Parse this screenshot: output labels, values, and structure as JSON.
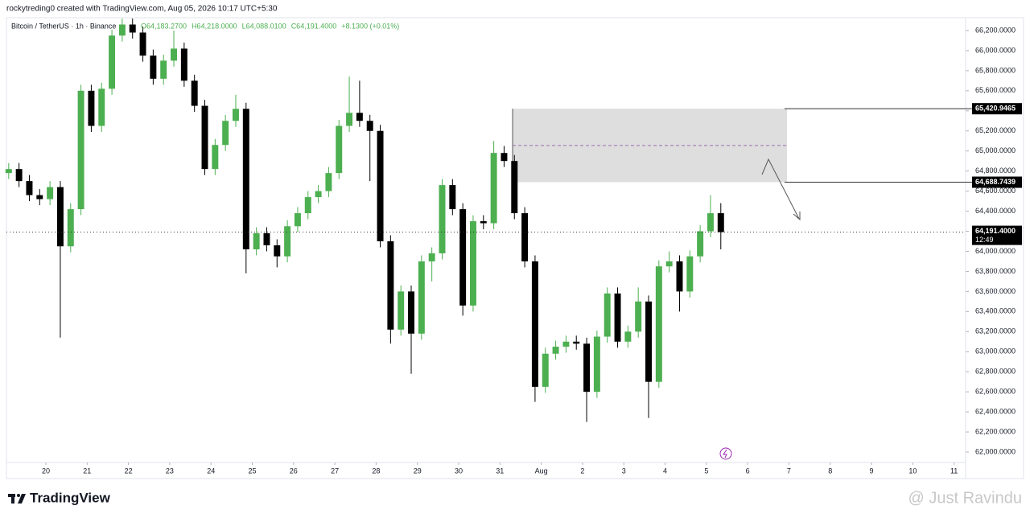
{
  "header": {
    "attribution": "rockytreding0 created with TradingView.com, Aug 05, 2026 10:17 UTC+5:30",
    "symbol": "Bitcoin / TetherUS · 1h · Binance",
    "ohlc_legend": [
      "O64,183.2700",
      "H64,218.0000",
      "L64,088.0100",
      "C64,191.4000",
      "+8.1300 (+0.01%)"
    ]
  },
  "chart_data": {
    "type": "candlestick",
    "up_color": "#4caf50",
    "down_color": "#000000",
    "x": [
      -0.9,
      -0.65,
      -0.4,
      -0.15,
      0.1,
      0.35,
      0.6,
      0.85,
      1.1,
      1.35,
      1.6,
      1.85,
      2.1,
      2.35,
      2.6,
      2.85,
      3.1,
      3.35,
      3.6,
      3.85,
      4.1,
      4.35,
      4.6,
      4.85,
      5.1,
      5.35,
      5.6,
      5.85,
      6.1,
      6.35,
      6.6,
      6.85,
      7.1,
      7.35,
      7.6,
      7.85,
      8.1,
      8.35,
      8.6,
      8.85,
      9.1,
      9.35,
      9.6,
      9.85,
      10.1,
      10.35,
      10.6,
      10.85,
      11.1,
      11.35,
      11.6,
      11.85,
      12.1,
      12.35,
      12.6,
      12.85,
      13.1,
      13.35,
      13.6,
      13.85,
      14.1,
      14.35,
      14.6,
      14.85,
      15.1,
      15.35,
      15.6,
      15.85,
      16.1,
      16.35
    ],
    "open": [
      64780,
      64820,
      64700,
      64560,
      64520,
      64640,
      64050,
      64420,
      65600,
      65250,
      65620,
      66150,
      66260,
      66180,
      65950,
      65720,
      65900,
      66020,
      65700,
      65450,
      64820,
      65060,
      65300,
      65420,
      64020,
      64180,
      64060,
      63950,
      64250,
      64380,
      64540,
      64600,
      64780,
      65250,
      65380,
      65300,
      65200,
      64100,
      63220,
      63600,
      63180,
      63900,
      63980,
      64660,
      64420,
      63460,
      64300,
      64280,
      64980,
      64900,
      64380,
      63900,
      62650,
      62980,
      63050,
      63100,
      63080,
      62600,
      63150,
      63580,
      63100,
      63200,
      63500,
      62700,
      63850,
      63900,
      63600,
      63950,
      64200,
      64380
    ],
    "high": [
      64880,
      64880,
      64760,
      64620,
      64700,
      64700,
      64480,
      65660,
      65660,
      65680,
      66210,
      66320,
      66320,
      66240,
      66010,
      65960,
      66200,
      66080,
      65760,
      65510,
      65120,
      65360,
      65560,
      65480,
      64240,
      64240,
      64120,
      64310,
      64440,
      64600,
      64660,
      64840,
      65310,
      65740,
      65700,
      65360,
      65260,
      64160,
      63660,
      63660,
      63960,
      64040,
      64720,
      64720,
      64480,
      64360,
      64360,
      65100,
      65050,
      64960,
      64440,
      63960,
      63040,
      63110,
      63160,
      63160,
      63140,
      63210,
      63640,
      63640,
      63260,
      63640,
      63560,
      63910,
      64000,
      63960,
      64010,
      64260,
      64560,
      64480
    ],
    "low": [
      64720,
      64640,
      64500,
      64460,
      64460,
      63140,
      63990,
      64360,
      65190,
      65190,
      65560,
      66090,
      66120,
      65890,
      65660,
      65660,
      65840,
      65640,
      65390,
      64760,
      64760,
      65000,
      65240,
      63780,
      63960,
      64000,
      63840,
      63890,
      64190,
      64320,
      64480,
      64540,
      64720,
      65190,
      65240,
      64700,
      64040,
      63080,
      63160,
      62780,
      63120,
      63700,
      63920,
      64360,
      63360,
      63400,
      64220,
      64220,
      64840,
      64320,
      63840,
      62500,
      62590,
      62920,
      62990,
      63020,
      62300,
      62540,
      63090,
      63040,
      63040,
      63140,
      62340,
      62640,
      63790,
      63400,
      63540,
      63890,
      64140,
      64020
    ],
    "close": [
      64820,
      64700,
      64560,
      64520,
      64640,
      64050,
      64420,
      65600,
      65250,
      65620,
      66150,
      66260,
      66180,
      65950,
      65720,
      65900,
      66020,
      65700,
      65450,
      64820,
      65060,
      65300,
      65420,
      64020,
      64180,
      64060,
      63950,
      64250,
      64380,
      64540,
      64600,
      64780,
      65250,
      65380,
      65300,
      65200,
      64100,
      63220,
      63600,
      63180,
      63900,
      63980,
      64660,
      64420,
      63460,
      64300,
      64280,
      64980,
      64900,
      64380,
      63900,
      62650,
      62980,
      63050,
      63100,
      63080,
      62600,
      63150,
      63580,
      63100,
      63200,
      63500,
      62700,
      63850,
      63900,
      63600,
      63950,
      64200,
      64380,
      64191.4
    ],
    "xlim": [
      -0.955,
      22.28
    ],
    "xticks": [
      {
        "value": 0,
        "label": "20"
      },
      {
        "value": 1,
        "label": "21"
      },
      {
        "value": 2,
        "label": "22"
      },
      {
        "value": 3,
        "label": "23"
      },
      {
        "value": 4,
        "label": "24"
      },
      {
        "value": 5,
        "label": "25"
      },
      {
        "value": 6,
        "label": "26"
      },
      {
        "value": 7,
        "label": "27"
      },
      {
        "value": 8,
        "label": "28"
      },
      {
        "value": 9,
        "label": "29"
      },
      {
        "value": 10,
        "label": "30"
      },
      {
        "value": 11,
        "label": "31"
      },
      {
        "value": 12,
        "label": "Aug"
      },
      {
        "value": 13,
        "label": "2"
      },
      {
        "value": 14,
        "label": "3"
      },
      {
        "value": 15,
        "label": "4"
      },
      {
        "value": 16,
        "label": "5"
      },
      {
        "value": 17,
        "label": "6"
      },
      {
        "value": 18,
        "label": "7"
      },
      {
        "value": 19,
        "label": "8"
      },
      {
        "value": 20,
        "label": "9"
      },
      {
        "value": 21,
        "label": "10"
      },
      {
        "value": 22,
        "label": "11"
      }
    ],
    "ylim": [
      61896,
      66328
    ],
    "yticks": [
      {
        "value": 62000,
        "label": "62,000.0000"
      },
      {
        "value": 62200,
        "label": "62,200.0000"
      },
      {
        "value": 62400,
        "label": "62,400.0000"
      },
      {
        "value": 62600,
        "label": "62,600.0000"
      },
      {
        "value": 62800,
        "label": "62,800.0000"
      },
      {
        "value": 63000,
        "label": "63,000.0000"
      },
      {
        "value": 63200,
        "label": "63,200.0000"
      },
      {
        "value": 63400,
        "label": "63,400.0000"
      },
      {
        "value": 63600,
        "label": "63,600.0000"
      },
      {
        "value": 63800,
        "label": "63,800.0000"
      },
      {
        "value": 64000,
        "label": "64,000.0000"
      },
      {
        "value": 64200,
        "label": "64,200.0000"
      },
      {
        "value": 64400,
        "label": "64,400.0000"
      },
      {
        "value": 64600,
        "label": "64,600.0000"
      },
      {
        "value": 64800,
        "label": "64,800.0000"
      },
      {
        "value": 65000,
        "label": "65,000.0000"
      },
      {
        "value": 65200,
        "label": "65,200.0000"
      },
      {
        "value": 65400,
        "label": "65,400.0000"
      },
      {
        "value": 65600,
        "label": "65,600.0000"
      },
      {
        "value": 65800,
        "label": "65,800.0000"
      },
      {
        "value": 66000,
        "label": "66,000.0000"
      },
      {
        "value": 66200,
        "label": "66,200.0000"
      }
    ],
    "zone": {
      "top": {
        "value": 65420.9465,
        "label": "65,420.9465"
      },
      "bottom": {
        "value": 64688.7439,
        "label": "64,688.7439"
      }
    },
    "last_price": {
      "value": 64191.4,
      "label": "64,191.4000"
    },
    "countdown": "12:49"
  },
  "footer": {
    "brand": "TradingView",
    "watermark": "@ Just Ravindu"
  }
}
